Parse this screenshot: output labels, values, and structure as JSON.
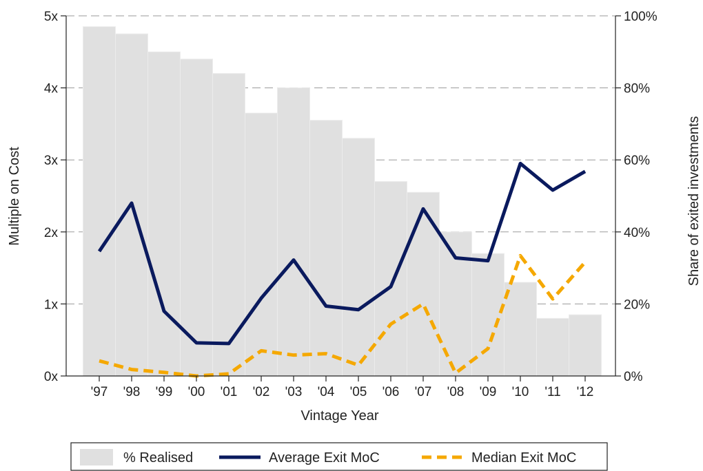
{
  "chart_data": {
    "type": "bar",
    "xlabel": "Vintage Year",
    "ylabel": "Multiple on Cost",
    "y2label": "Share of exited investments",
    "categories": [
      "'97",
      "'98",
      "'99",
      "'00",
      "'01",
      "'02",
      "'03",
      "'04",
      "'05",
      "'06",
      "'07",
      "'08",
      "'09",
      "'10",
      "'11",
      "'12"
    ],
    "ylim": [
      0,
      5
    ],
    "y2lim": [
      0,
      100
    ],
    "yticks": [
      "0x",
      "1x",
      "2x",
      "3x",
      "4x",
      "5x"
    ],
    "y2ticks": [
      "0%",
      "20%",
      "40%",
      "60%",
      "80%",
      "100%"
    ],
    "grid": "horizontal-dashed",
    "legend_position": "bottom",
    "series": [
      {
        "name": "% Realised",
        "type": "bar",
        "axis": "right",
        "color": "#e0e0e0",
        "values": [
          97,
          95,
          90,
          88,
          84,
          73,
          80,
          71,
          66,
          54,
          51,
          40,
          34,
          26,
          16,
          17
        ]
      },
      {
        "name": "Average Exit MoC",
        "type": "line",
        "axis": "left",
        "color": "#0a1a5e",
        "style": "solid",
        "values": [
          1.73,
          2.4,
          0.9,
          0.46,
          0.45,
          1.08,
          1.61,
          0.97,
          0.92,
          1.24,
          2.32,
          1.64,
          1.6,
          2.95,
          2.58,
          2.84
        ]
      },
      {
        "name": "Median Exit MoC",
        "type": "line",
        "axis": "left",
        "color": "#f5a800",
        "style": "dashed",
        "values": [
          0.21,
          0.09,
          0.05,
          0.0,
          0.03,
          0.35,
          0.29,
          0.31,
          0.15,
          0.72,
          1.0,
          0.04,
          0.38,
          1.67,
          1.07,
          1.58
        ]
      }
    ]
  }
}
